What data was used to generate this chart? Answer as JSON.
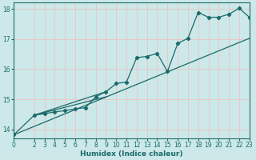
{
  "xlabel": "Humidex (Indice chaleur)",
  "bg_color": "#cce8e8",
  "grid_color": "#e8c8c8",
  "line_color": "#1a6b6b",
  "xlim": [
    0,
    23
  ],
  "ylim": [
    13.7,
    18.2
  ],
  "xticks": [
    0,
    2,
    3,
    4,
    5,
    6,
    7,
    8,
    9,
    10,
    11,
    12,
    13,
    14,
    15,
    16,
    17,
    18,
    19,
    20,
    21,
    22,
    23
  ],
  "yticks": [
    14,
    15,
    16,
    17,
    18
  ],
  "curve_x": [
    0,
    2,
    3,
    4,
    5,
    6,
    7,
    8,
    9,
    10,
    11,
    12,
    13,
    14,
    15,
    16,
    17,
    18,
    19,
    20,
    21,
    22,
    23
  ],
  "curve_y": [
    13.82,
    14.47,
    14.52,
    14.58,
    14.62,
    14.68,
    14.72,
    15.08,
    15.25,
    15.52,
    15.57,
    16.38,
    16.42,
    16.52,
    15.92,
    16.85,
    17.02,
    17.88,
    17.72,
    17.72,
    17.82,
    18.02,
    17.72
  ],
  "straight_line_x": [
    0,
    23
  ],
  "straight_line_y": [
    13.82,
    17.02
  ],
  "extra_line1_x": [
    2,
    9
  ],
  "extra_line1_y": [
    14.47,
    15.08
  ],
  "extra_line2_x": [
    2,
    9
  ],
  "extra_line2_y": [
    14.47,
    15.25
  ]
}
